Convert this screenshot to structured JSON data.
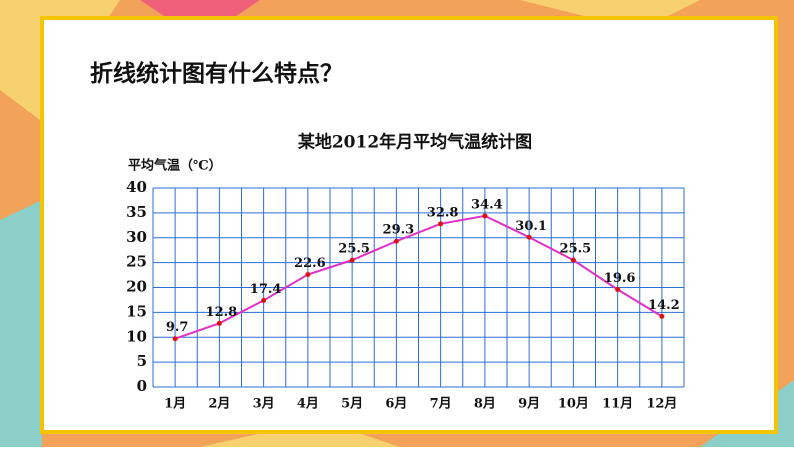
{
  "question": "折线统计图有什么特点？",
  "chart_data": {
    "type": "line",
    "title": "某地2012年月平均气温统计图",
    "ylabel": "平均气温（℃）",
    "categories": [
      "1月",
      "2月",
      "3月",
      "4月",
      "5月",
      "6月",
      "7月",
      "8月",
      "9月",
      "10月",
      "11月",
      "12月"
    ],
    "values": [
      9.7,
      12.8,
      17.4,
      22.6,
      25.5,
      29.3,
      32.8,
      34.4,
      30.1,
      25.5,
      19.6,
      14.2
    ],
    "color": "#e030c8",
    "marker_color": "#e01010",
    "ylim": [
      0,
      40
    ],
    "yticks": [
      0,
      5,
      10,
      15,
      20,
      25,
      30,
      35,
      40
    ],
    "grid": true
  }
}
